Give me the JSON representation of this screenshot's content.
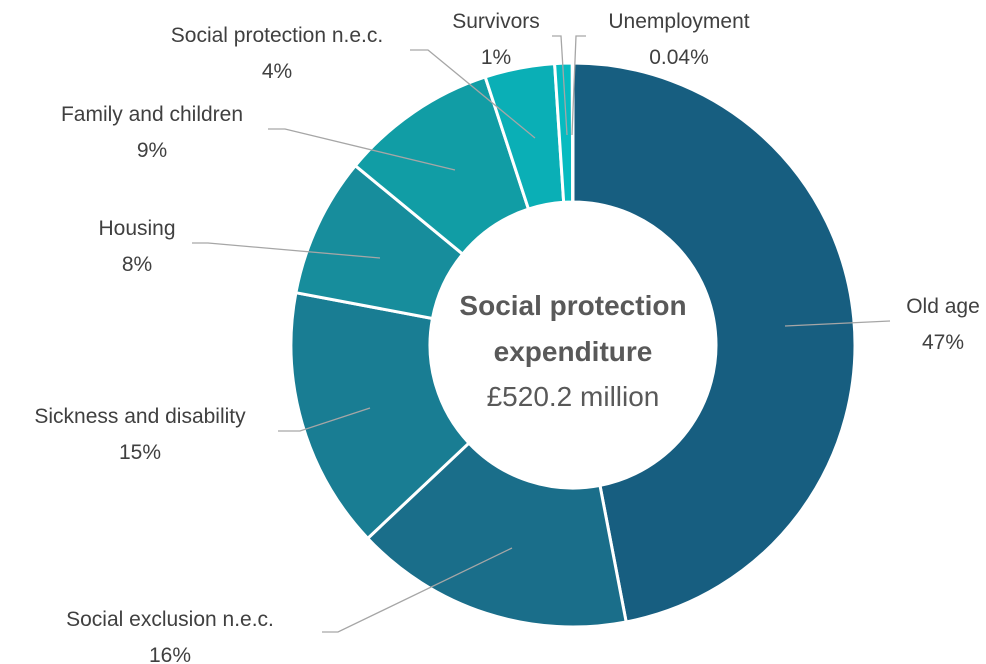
{
  "chart_data": {
    "type": "pie",
    "style": "donut",
    "center_title_lines": [
      "Social protection",
      "expenditure"
    ],
    "center_value": "£520.2 million",
    "slices": [
      {
        "label": "Old age",
        "value": 47,
        "display": "47%",
        "color": "#175e80"
      },
      {
        "label": "Social exclusion n.e.c.",
        "value": 16,
        "display": "16%",
        "color": "#1a6e8a"
      },
      {
        "label": "Sickness and disability",
        "value": 15,
        "display": "15%",
        "color": "#197d93"
      },
      {
        "label": "Housing",
        "value": 8,
        "display": "8%",
        "color": "#178d9c"
      },
      {
        "label": "Family and children",
        "value": 9,
        "display": "9%",
        "color": "#119da5"
      },
      {
        "label": "Social protection n.e.c.",
        "value": 4,
        "display": "4%",
        "color": "#0aafb6"
      },
      {
        "label": "Survivors",
        "value": 1,
        "display": "1%",
        "color": "#07bbc0"
      },
      {
        "label": "Unemployment",
        "value": 0.04,
        "display": "0.04%",
        "color": "#0bc4c8"
      }
    ],
    "legend": "none"
  }
}
